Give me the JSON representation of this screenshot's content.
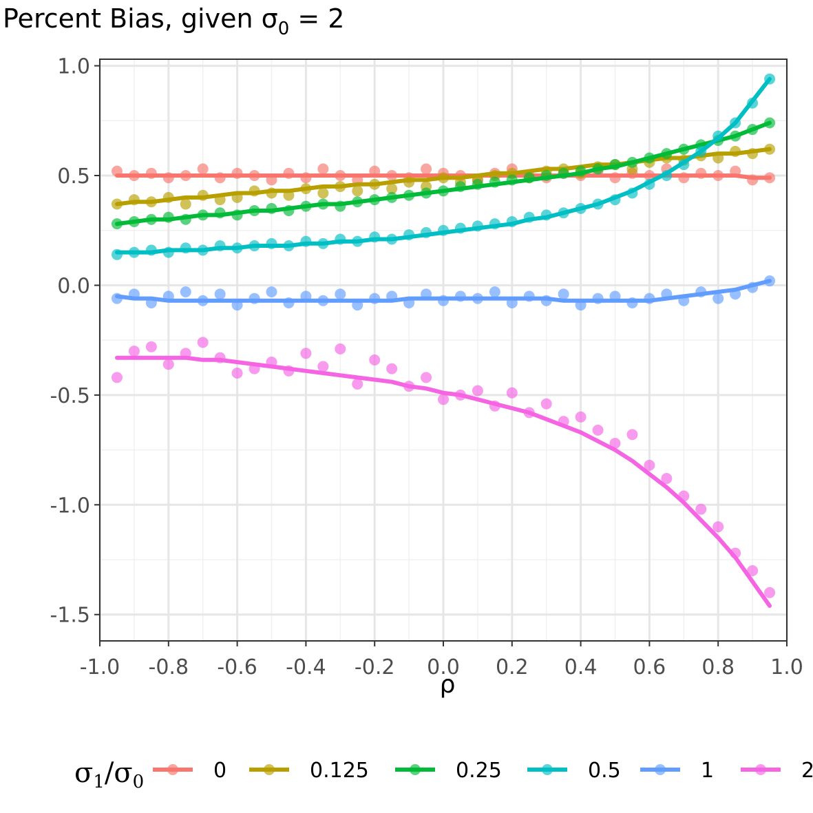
{
  "chart_data": {
    "type": "scatter",
    "title": {
      "prefix": "Percent Bias, given ",
      "sigma": "σ",
      "sub": "0",
      "suffix": " = 2"
    },
    "xlabel": "ρ",
    "ylabel": "",
    "xlim": [
      -1.0,
      1.0
    ],
    "ylim": [
      -1.62,
      1.03
    ],
    "xticks": [
      -1.0,
      -0.8,
      -0.6,
      -0.4,
      -0.2,
      0.0,
      0.2,
      0.4,
      0.6,
      0.8,
      1.0
    ],
    "xtick_labels": [
      "-1.0",
      "-0.8",
      "-0.6",
      "-0.4",
      "-0.2",
      "0.0",
      "0.2",
      "0.4",
      "0.6",
      "0.8",
      "1.0"
    ],
    "yticks": [
      1.0,
      0.5,
      0.0,
      -0.5,
      -1.0,
      -1.5
    ],
    "ytick_labels": [
      "1.0",
      "0.5",
      "0.0",
      "-0.5",
      "-1.0",
      "-1.5"
    ],
    "grid": true,
    "legend": {
      "placement": "bottom",
      "title": {
        "s1": "σ",
        "sub1": "1",
        "slash": "/",
        "s2": "σ",
        "sub2": "0"
      }
    },
    "x": [
      -0.95,
      -0.9,
      -0.85,
      -0.8,
      -0.75,
      -0.7,
      -0.65,
      -0.6,
      -0.55,
      -0.5,
      -0.45,
      -0.4,
      -0.35,
      -0.3,
      -0.25,
      -0.2,
      -0.15,
      -0.1,
      -0.05,
      0.0,
      0.05,
      0.1,
      0.15,
      0.2,
      0.25,
      0.3,
      0.35,
      0.4,
      0.45,
      0.5,
      0.55,
      0.6,
      0.65,
      0.7,
      0.75,
      0.8,
      0.85,
      0.9,
      0.95
    ],
    "series": [
      {
        "name": "0",
        "color": "#F8766D",
        "values": [
          0.52,
          0.5,
          0.51,
          0.49,
          0.5,
          0.53,
          0.49,
          0.51,
          0.5,
          0.48,
          0.51,
          0.49,
          0.53,
          0.5,
          0.48,
          0.52,
          0.5,
          0.49,
          0.53,
          0.51,
          0.5,
          0.48,
          0.51,
          0.53,
          0.5,
          0.49,
          0.51,
          0.5,
          0.52,
          0.49,
          0.51,
          0.5,
          0.53,
          0.49,
          0.51,
          0.5,
          0.52,
          0.48,
          0.49
        ],
        "fit": [
          0.5,
          0.5,
          0.5,
          0.5,
          0.5,
          0.5,
          0.5,
          0.5,
          0.5,
          0.5,
          0.5,
          0.5,
          0.5,
          0.5,
          0.5,
          0.5,
          0.5,
          0.5,
          0.5,
          0.5,
          0.5,
          0.5,
          0.5,
          0.5,
          0.5,
          0.5,
          0.5,
          0.5,
          0.5,
          0.5,
          0.5,
          0.5,
          0.5,
          0.5,
          0.5,
          0.5,
          0.5,
          0.49,
          0.49
        ]
      },
      {
        "name": "0.125",
        "color": "#B79F00",
        "values": [
          0.37,
          0.39,
          0.38,
          0.4,
          0.37,
          0.41,
          0.39,
          0.4,
          0.43,
          0.42,
          0.41,
          0.44,
          0.42,
          0.45,
          0.43,
          0.46,
          0.44,
          0.47,
          0.45,
          0.49,
          0.47,
          0.48,
          0.5,
          0.51,
          0.49,
          0.52,
          0.53,
          0.51,
          0.54,
          0.55,
          0.53,
          0.56,
          0.58,
          0.57,
          0.59,
          0.58,
          0.61,
          0.6,
          0.62
        ],
        "fit": [
          0.37,
          0.38,
          0.38,
          0.39,
          0.4,
          0.4,
          0.41,
          0.42,
          0.42,
          0.43,
          0.43,
          0.44,
          0.45,
          0.45,
          0.46,
          0.46,
          0.47,
          0.48,
          0.48,
          0.49,
          0.49,
          0.5,
          0.51,
          0.51,
          0.52,
          0.53,
          0.53,
          0.54,
          0.55,
          0.55,
          0.56,
          0.57,
          0.58,
          0.58,
          0.59,
          0.6,
          0.6,
          0.61,
          0.62
        ]
      },
      {
        "name": "0.25",
        "color": "#00BA38",
        "values": [
          0.28,
          0.29,
          0.3,
          0.31,
          0.3,
          0.32,
          0.33,
          0.32,
          0.34,
          0.35,
          0.34,
          0.36,
          0.37,
          0.36,
          0.38,
          0.39,
          0.4,
          0.41,
          0.42,
          0.43,
          0.45,
          0.46,
          0.47,
          0.48,
          0.49,
          0.5,
          0.51,
          0.52,
          0.53,
          0.55,
          0.56,
          0.58,
          0.6,
          0.62,
          0.64,
          0.66,
          0.68,
          0.71,
          0.74
        ],
        "fit": [
          0.28,
          0.29,
          0.3,
          0.3,
          0.31,
          0.32,
          0.32,
          0.33,
          0.34,
          0.34,
          0.35,
          0.36,
          0.37,
          0.37,
          0.38,
          0.39,
          0.4,
          0.41,
          0.42,
          0.43,
          0.44,
          0.45,
          0.46,
          0.47,
          0.48,
          0.49,
          0.5,
          0.51,
          0.53,
          0.54,
          0.56,
          0.58,
          0.6,
          0.62,
          0.64,
          0.66,
          0.68,
          0.71,
          0.74
        ]
      },
      {
        "name": "0.5",
        "color": "#00BFC4",
        "values": [
          0.14,
          0.15,
          0.16,
          0.15,
          0.17,
          0.16,
          0.18,
          0.17,
          0.18,
          0.19,
          0.18,
          0.2,
          0.19,
          0.21,
          0.2,
          0.22,
          0.21,
          0.23,
          0.24,
          0.25,
          0.26,
          0.27,
          0.28,
          0.29,
          0.31,
          0.32,
          0.33,
          0.35,
          0.37,
          0.39,
          0.42,
          0.46,
          0.5,
          0.55,
          0.61,
          0.68,
          0.74,
          0.83,
          0.94
        ],
        "fit": [
          0.15,
          0.15,
          0.15,
          0.16,
          0.16,
          0.16,
          0.17,
          0.17,
          0.18,
          0.18,
          0.18,
          0.19,
          0.19,
          0.2,
          0.2,
          0.21,
          0.21,
          0.22,
          0.23,
          0.24,
          0.25,
          0.26,
          0.27,
          0.28,
          0.3,
          0.31,
          0.33,
          0.35,
          0.37,
          0.4,
          0.43,
          0.47,
          0.51,
          0.56,
          0.61,
          0.67,
          0.74,
          0.84,
          0.94
        ]
      },
      {
        "name": "1",
        "color": "#619CFF",
        "values": [
          -0.06,
          -0.04,
          -0.08,
          -0.05,
          -0.03,
          -0.07,
          -0.04,
          -0.09,
          -0.06,
          -0.03,
          -0.08,
          -0.05,
          -0.07,
          -0.04,
          -0.09,
          -0.06,
          -0.05,
          -0.08,
          -0.04,
          -0.07,
          -0.05,
          -0.06,
          -0.03,
          -0.08,
          -0.05,
          -0.07,
          -0.04,
          -0.09,
          -0.06,
          -0.05,
          -0.08,
          -0.06,
          -0.04,
          -0.07,
          -0.03,
          -0.06,
          -0.04,
          -0.01,
          0.02
        ],
        "fit": [
          -0.05,
          -0.06,
          -0.06,
          -0.07,
          -0.07,
          -0.07,
          -0.07,
          -0.07,
          -0.07,
          -0.07,
          -0.07,
          -0.07,
          -0.07,
          -0.07,
          -0.07,
          -0.07,
          -0.07,
          -0.06,
          -0.06,
          -0.06,
          -0.06,
          -0.06,
          -0.06,
          -0.06,
          -0.06,
          -0.06,
          -0.07,
          -0.07,
          -0.07,
          -0.07,
          -0.07,
          -0.07,
          -0.06,
          -0.05,
          -0.04,
          -0.03,
          -0.02,
          0.0,
          0.02
        ]
      },
      {
        "name": "2",
        "color": "#F564E3",
        "values": [
          -0.42,
          -0.3,
          -0.28,
          -0.36,
          -0.31,
          -0.26,
          -0.33,
          -0.4,
          -0.38,
          -0.35,
          -0.39,
          -0.31,
          -0.37,
          -0.29,
          -0.45,
          -0.34,
          -0.38,
          -0.46,
          -0.42,
          -0.52,
          -0.5,
          -0.48,
          -0.55,
          -0.49,
          -0.58,
          -0.54,
          -0.62,
          -0.6,
          -0.66,
          -0.72,
          -0.68,
          -0.82,
          -0.88,
          -0.96,
          -1.02,
          -1.1,
          -1.22,
          -1.3,
          -1.4
        ],
        "fit": [
          -0.33,
          -0.33,
          -0.33,
          -0.33,
          -0.33,
          -0.34,
          -0.34,
          -0.35,
          -0.36,
          -0.37,
          -0.38,
          -0.39,
          -0.4,
          -0.41,
          -0.42,
          -0.43,
          -0.44,
          -0.46,
          -0.47,
          -0.49,
          -0.5,
          -0.52,
          -0.54,
          -0.56,
          -0.58,
          -0.61,
          -0.64,
          -0.67,
          -0.71,
          -0.75,
          -0.8,
          -0.86,
          -0.92,
          -0.99,
          -1.07,
          -1.15,
          -1.24,
          -1.35,
          -1.46
        ]
      }
    ]
  }
}
